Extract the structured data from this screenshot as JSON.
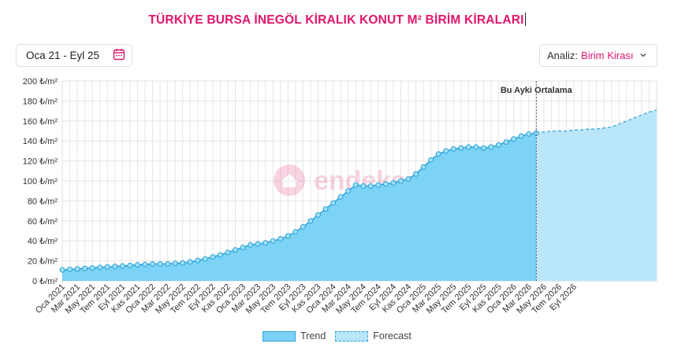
{
  "title": "TÜRKİYE BURSA İNEGÖL KİRALIK KONUT M² BİRİM KİRALARI",
  "date_range": "Oca 21 - Eyl 25",
  "analiz": {
    "label": "Analiz:",
    "value": "Birim Kirası"
  },
  "icons": {
    "calendar": "calendar-icon",
    "chevron": "chevron-down-icon"
  },
  "colors": {
    "accent": "#e0166b",
    "trend_fill": "#7dd3f5",
    "trend_line": "#2aa1d8",
    "forecast_fill": "#b9e6f8"
  },
  "watermark": "endeksa",
  "chart_data": {
    "type": "area",
    "ylim": [
      0,
      200
    ],
    "yticks": [
      0,
      20,
      40,
      60,
      80,
      100,
      120,
      140,
      160,
      180,
      200
    ],
    "ytick_labels": [
      "0 ₺/m²",
      "20 ₺/m²",
      "40 ₺/m²",
      "60 ₺/m²",
      "80 ₺/m²",
      "100 ₺/m²",
      "120 ₺/m²",
      "140 ₺/m²",
      "160 ₺/m²",
      "180 ₺/m²",
      "200 ₺/m²"
    ],
    "x_labels": [
      "Oca 2021",
      "Mar 2021",
      "May 2021",
      "Tem 2021",
      "Eyl 2021",
      "Kas 2021",
      "Oca 2022",
      "Mar 2022",
      "May 2022",
      "Tem 2022",
      "Eyl 2022",
      "Kas 2022",
      "Oca 2023",
      "Mar 2023",
      "May 2023",
      "Tem 2023",
      "Eyl 2023",
      "Kas 2023",
      "Oca 2024",
      "Mar 2024",
      "May 2024",
      "Tem 2024",
      "Eyl 2024",
      "Kas 2024",
      "Oca 2025",
      "Mar 2025",
      "May 2025",
      "Tem 2025",
      "Eyl 2025",
      "Kas 2025",
      "Oca 2026",
      "Mar 2026",
      "May 2026",
      "Tem 2026",
      "Eyl 2026"
    ],
    "annotation": "Bu Ayki Ortalama",
    "legend": [
      "Trend",
      "Forecast"
    ],
    "legend_position": "bottom",
    "grid": true,
    "series": [
      {
        "name": "Trend",
        "values": [
          11,
          11.5,
          12,
          12.5,
          13,
          13.5,
          14,
          14.5,
          15,
          15.5,
          16,
          16.5,
          17,
          17,
          17,
          17.5,
          18,
          19,
          20.5,
          22,
          24,
          26,
          28.5,
          31,
          33.5,
          36,
          37,
          38,
          40,
          42,
          45,
          49,
          54,
          60,
          66,
          72,
          78,
          84,
          90,
          96,
          95,
          95,
          96,
          97,
          98,
          100,
          102,
          107,
          114,
          121,
          127,
          130,
          132,
          133,
          134,
          134,
          133,
          134,
          136,
          139,
          142,
          145,
          147,
          148
        ]
      },
      {
        "name": "Forecast",
        "values": [
          148,
          149,
          150,
          150,
          150,
          151,
          151,
          152,
          152,
          153,
          154,
          157,
          160,
          163,
          166,
          169,
          171
        ]
      }
    ]
  }
}
